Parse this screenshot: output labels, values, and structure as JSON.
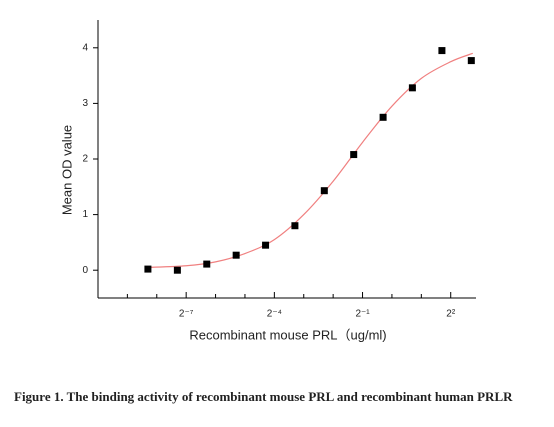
{
  "chart_data": {
    "type": "scatter",
    "x_label": "Recombinant mouse PRL（ug/ml)",
    "y_label": "Mean OD value",
    "caption": "Figure 1. The binding activity of recombinant mouse PRL and recombinant human PRLR",
    "x_log_base": 2,
    "xlim": [
      0.000977,
      7.26
    ],
    "ylim": [
      -0.5,
      4.5
    ],
    "xticks": [
      {
        "value": 0.0078125,
        "label": "2⁻⁷"
      },
      {
        "value": 0.0625,
        "label": "2⁻⁴"
      },
      {
        "value": 0.5,
        "label": "2⁻¹"
      },
      {
        "value": 4,
        "label": "2²"
      }
    ],
    "minor_xticks": [
      0.001953125,
      0.00390625,
      0.015625,
      0.03125,
      0.125,
      0.25,
      1,
      2
    ],
    "yticks": [
      0,
      1,
      2,
      3,
      4
    ],
    "series": [
      {
        "color": "#000000",
        "x": [
          0.00317,
          0.00635,
          0.0127,
          0.0254,
          0.0508,
          0.1015,
          0.203,
          0.406,
          0.812,
          1.62,
          3.25,
          6.5
        ],
        "values": [
          0.02,
          0.0,
          0.11,
          0.27,
          0.45,
          0.8,
          1.43,
          2.08,
          2.75,
          3.28,
          3.95,
          3.77
        ]
      }
    ],
    "fit": {
      "color": "#f08080",
      "x": [
        0.00317,
        0.0078125,
        0.015625,
        0.03125,
        0.0625,
        0.125,
        0.25,
        0.5,
        1,
        2,
        4,
        6.73
      ],
      "values": [
        0.05,
        0.08,
        0.15,
        0.3,
        0.55,
        1.0,
        1.6,
        2.3,
        2.95,
        3.45,
        3.75,
        3.9
      ]
    }
  }
}
